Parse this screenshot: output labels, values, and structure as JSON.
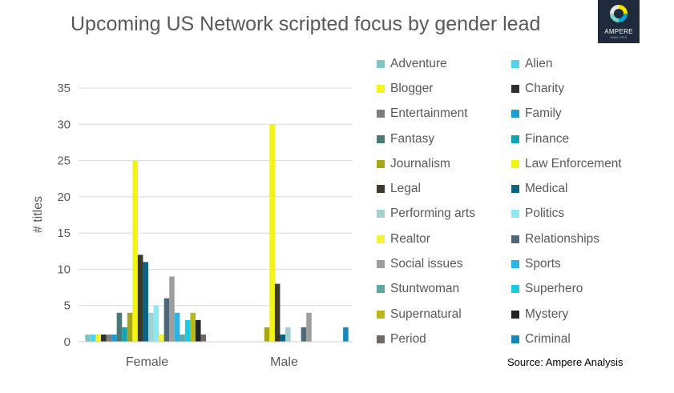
{
  "brand": {
    "name": "AMPERE",
    "sub": "ANALYSIS",
    "ring_colors": [
      "#f4e400",
      "#00a6d6",
      "#7ad3c9",
      "#e6e6e6"
    ],
    "bg_color": "#1f2a3c"
  },
  "source_text": "Source:  Ampere Analysis",
  "chart_data": {
    "type": "bar",
    "title": "Upcoming US Network scripted focus by gender lead",
    "xlabel": "",
    "ylabel": "# titles",
    "ylim": [
      0,
      35
    ],
    "yticks": [
      0,
      5,
      10,
      15,
      20,
      25,
      30,
      35
    ],
    "grid": true,
    "legend_position": "right",
    "categories": [
      "Female",
      "Male"
    ],
    "series": [
      {
        "name": "Adventure",
        "color": "#7fc4c2",
        "values": [
          1,
          0
        ]
      },
      {
        "name": "Alien",
        "color": "#4fd2ea",
        "values": [
          1,
          0
        ]
      },
      {
        "name": "Blogger",
        "color": "#f7f41e",
        "values": [
          1,
          0
        ]
      },
      {
        "name": "Charity",
        "color": "#2f3030",
        "values": [
          1,
          0
        ]
      },
      {
        "name": "Entertainment",
        "color": "#7d7d7d",
        "values": [
          1,
          0
        ]
      },
      {
        "name": "Family",
        "color": "#1d9bd3",
        "values": [
          1,
          0
        ]
      },
      {
        "name": "Fantasy",
        "color": "#4c7876",
        "values": [
          4,
          0
        ]
      },
      {
        "name": "Finance",
        "color": "#13a4b4",
        "values": [
          2,
          0
        ]
      },
      {
        "name": "Journalism",
        "color": "#a9a616",
        "values": [
          4,
          2
        ]
      },
      {
        "name": "Law Enforcement",
        "color": "#f4f414",
        "values": [
          25,
          30
        ]
      },
      {
        "name": "Legal",
        "color": "#3b3a2c",
        "values": [
          12,
          8
        ]
      },
      {
        "name": "Medical",
        "color": "#0a6486",
        "values": [
          11,
          1
        ]
      },
      {
        "name": "Performing arts",
        "color": "#a3d1d0",
        "values": [
          4,
          2
        ]
      },
      {
        "name": "Politics",
        "color": "#8fe6f4",
        "values": [
          5,
          0
        ]
      },
      {
        "name": "Realtor",
        "color": "#f4f23a",
        "values": [
          1,
          0
        ]
      },
      {
        "name": "Relationships",
        "color": "#4d6678",
        "values": [
          6,
          2
        ]
      },
      {
        "name": "Social issues",
        "color": "#9d9d9d",
        "values": [
          9,
          4
        ]
      },
      {
        "name": "Sports",
        "color": "#2ab4e6",
        "values": [
          4,
          0
        ]
      },
      {
        "name": "Stuntwoman",
        "color": "#5fa6a4",
        "values": [
          1,
          0
        ]
      },
      {
        "name": "Superhero",
        "color": "#1ccbe0",
        "values": [
          3,
          0
        ]
      },
      {
        "name": "Supernatural",
        "color": "#b9b816",
        "values": [
          4,
          0
        ]
      },
      {
        "name": "Mystery",
        "color": "#222626",
        "values": [
          3,
          0
        ]
      },
      {
        "name": "Period",
        "color": "#6e6a63",
        "values": [
          1,
          0
        ]
      },
      {
        "name": "Criminal",
        "color": "#1789b4",
        "values": [
          0,
          2
        ]
      }
    ]
  }
}
